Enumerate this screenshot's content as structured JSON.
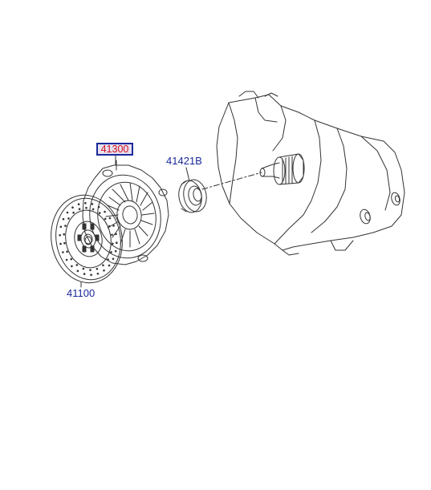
{
  "parts": {
    "pressure_plate": {
      "number": "41300",
      "highlighted": true
    },
    "release_bearing": {
      "number": "41421B"
    },
    "clutch_disc": {
      "number": "41100"
    }
  },
  "colors": {
    "line": "#333333",
    "callout_text": "#1a2a9a",
    "highlight_text": "#d01020",
    "highlight_fill": "#e8e0f0"
  }
}
